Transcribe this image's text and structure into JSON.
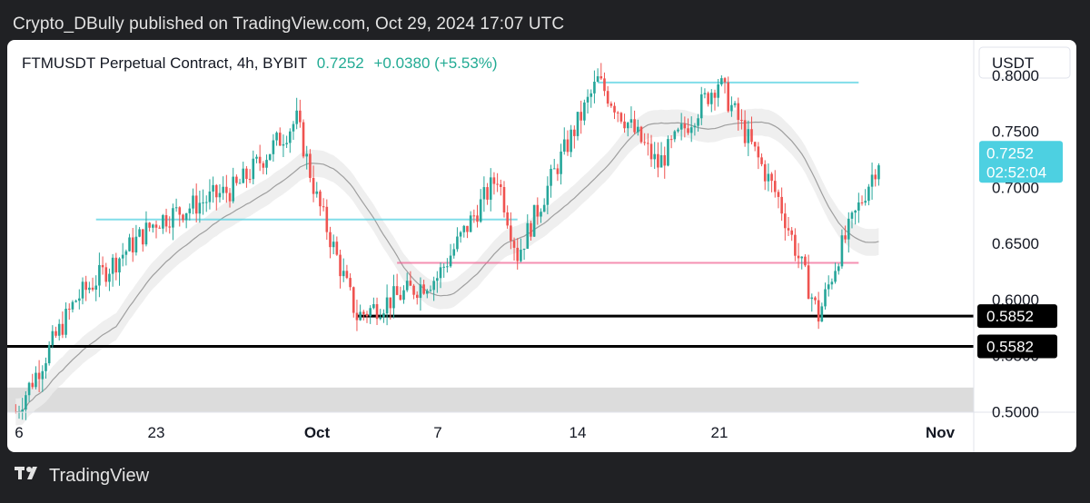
{
  "caption": "Crypto_DBully published on TradingView.com, Oct 29, 2024 17:07 UTC",
  "header": {
    "symbol": "FTMUSDT Perpetual Contract, 4h, BYBIT",
    "price": "0.7252",
    "change": "+0.0380 (+5.53%)"
  },
  "footer": {
    "brand": "TradingView",
    "logo_icon": "tradingview-logo-icon"
  },
  "chart_data": {
    "type": "candlestick",
    "title": "FTMUSDT Perpetual Contract, 4h, BYBIT",
    "currency": "USDT",
    "x_ticks": [
      "6",
      "23",
      "Oct",
      "7",
      "14",
      "21",
      "Nov"
    ],
    "y_ticks": [
      0.5,
      0.55,
      0.6,
      0.65,
      0.7,
      0.75,
      0.8
    ],
    "y_tick_labels": [
      "0.5000",
      "0.5500",
      "0.6000",
      "0.6500",
      "0.7000",
      "0.7500",
      "0.8000"
    ],
    "ylim": [
      0.4995,
      0.8315
    ],
    "current_price": {
      "value": 0.7252,
      "label": "0.7252",
      "countdown": "02:52:04",
      "color": "#4dd0e1"
    },
    "horizontal_levels": [
      {
        "value": 0.5852,
        "label": "0.5852",
        "color": "#000000",
        "extent": "from Oct 3 to right edge"
      },
      {
        "value": 0.5582,
        "label": "0.5582",
        "color": "#000000",
        "extent": "full width"
      },
      {
        "value": 0.7935,
        "label": "",
        "color": "#4dd0e1",
        "extent": "Oct 15 to Oct 28"
      },
      {
        "value": 0.6714,
        "label": "",
        "color": "#4dd0e1",
        "extent": "Sep 20 to Oct 11"
      },
      {
        "value": 0.6327,
        "label": "",
        "color": "#f06292",
        "extent": "Oct 5 to Oct 28"
      }
    ],
    "demand_zone": {
      "low": 0.4995,
      "high": 0.5215,
      "color": "#dcdcdc"
    },
    "up_color": "#26a69a",
    "down_color": "#ef5350",
    "moving_average_color": "#9e9e9e",
    "grid": false,
    "key_points": [
      {
        "date": "Sep 16",
        "close": 0.5
      },
      {
        "date": "Sep 19",
        "close": 0.6
      },
      {
        "date": "Sep 23",
        "close": 0.67
      },
      {
        "date": "Sep 27",
        "close": 0.7
      },
      {
        "date": "Sep 30",
        "close": 0.76
      },
      {
        "date": "Oct 1",
        "close": 0.69
      },
      {
        "date": "Oct 3",
        "low": 0.585
      },
      {
        "date": "Oct 7",
        "close": 0.62
      },
      {
        "date": "Oct 10",
        "close": 0.71
      },
      {
        "date": "Oct 11",
        "close": 0.64
      },
      {
        "date": "Oct 13",
        "close": 0.72
      },
      {
        "date": "Oct 15",
        "high": 0.795
      },
      {
        "date": "Oct 18",
        "close": 0.72
      },
      {
        "date": "Oct 21",
        "high": 0.795
      },
      {
        "date": "Oct 24",
        "close": 0.69
      },
      {
        "date": "Oct 26",
        "low": 0.585
      },
      {
        "date": "Oct 27",
        "close": 0.64
      },
      {
        "date": "Oct 29",
        "close": 0.7252
      }
    ]
  }
}
